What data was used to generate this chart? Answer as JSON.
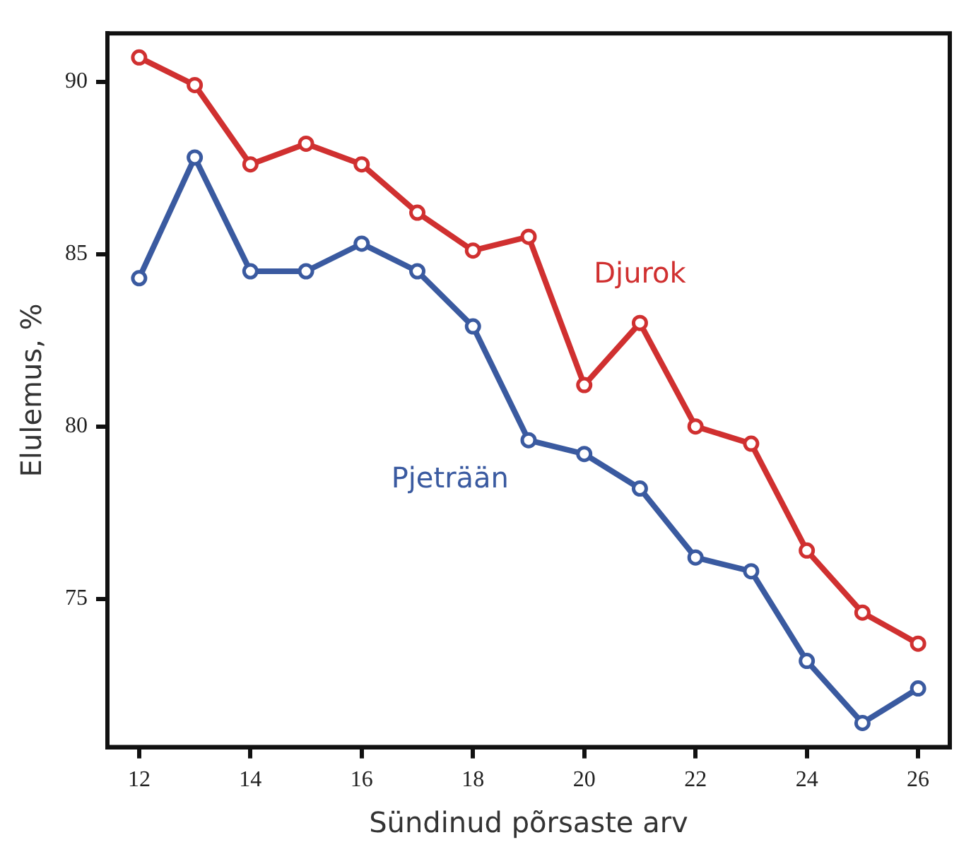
{
  "chart_data": {
    "type": "line",
    "xlabel": "Sündinud põrsaste arv",
    "ylabel": "Elulemus, %",
    "x": [
      12,
      13,
      14,
      15,
      16,
      17,
      18,
      19,
      20,
      21,
      22,
      23,
      24,
      25,
      26
    ],
    "series": [
      {
        "name": "Djurok",
        "color": "#d03030",
        "values": [
          90.7,
          89.9,
          87.6,
          88.2,
          87.6,
          86.2,
          85.1,
          85.5,
          81.2,
          83.0,
          80.0,
          79.5,
          76.4,
          74.6,
          73.7
        ]
      },
      {
        "name": "Pjeträän",
        "color": "#3a5aa0",
        "values": [
          84.3,
          87.8,
          84.5,
          84.5,
          85.3,
          84.5,
          82.9,
          79.6,
          79.2,
          78.2,
          76.2,
          75.8,
          73.2,
          71.4,
          72.4
        ]
      }
    ],
    "xlim": [
      11.43,
      26.57
    ],
    "xticks": [
      12,
      14,
      16,
      18,
      20,
      22,
      24,
      26
    ],
    "ylim": [
      70.7,
      91.4
    ],
    "yticks": [
      75,
      80,
      85,
      90
    ],
    "grid": false,
    "marker": "circle",
    "line_style": "solid",
    "legend": false
  }
}
